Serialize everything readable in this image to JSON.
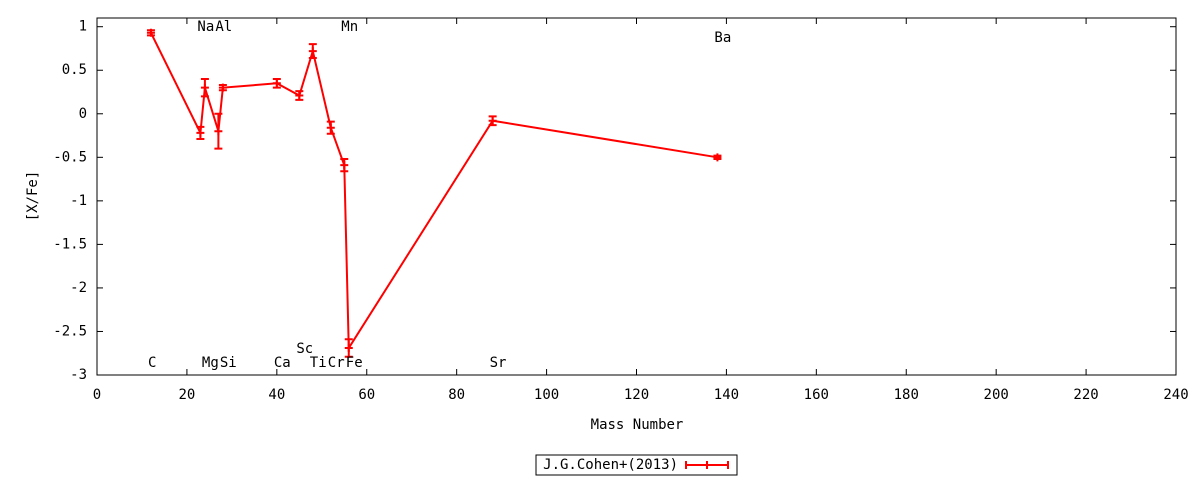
{
  "chart_data": {
    "type": "line",
    "xlabel": "Mass Number",
    "ylabel": "[X/Fe]",
    "x": [
      12,
      23,
      24,
      27,
      28,
      40,
      45,
      48,
      52,
      55,
      56,
      88,
      138
    ],
    "point_labels": [
      "C",
      "Na",
      "Mg",
      "Al",
      "Si",
      "Ca",
      "Sc",
      "Ti",
      "Cr",
      "Mn",
      "Fe",
      "Sr",
      "Ba"
    ],
    "series": [
      {
        "name": "J.G.Cohen+(2013)",
        "color": "#ff0000",
        "values": [
          0.93,
          -0.22,
          0.3,
          -0.2,
          0.3,
          0.35,
          0.21,
          0.72,
          -0.16,
          -0.59,
          -2.69,
          -0.08,
          -0.5
        ],
        "errors": [
          0.03,
          0.07,
          0.1,
          0.2,
          0.03,
          0.05,
          0.05,
          0.08,
          0.07,
          0.07,
          0.1,
          0.05,
          0.02
        ]
      }
    ],
    "xlim": [
      0,
      240
    ],
    "ylim": [
      -3,
      1.1
    ],
    "xticks": [
      0,
      20,
      40,
      60,
      80,
      100,
      120,
      140,
      160,
      180,
      200,
      220,
      240
    ],
    "yticks": [
      1,
      0.5,
      0,
      -0.5,
      -1,
      -1.5,
      -2,
      -2.5,
      -3
    ],
    "grid": false,
    "legend": "bottom"
  }
}
